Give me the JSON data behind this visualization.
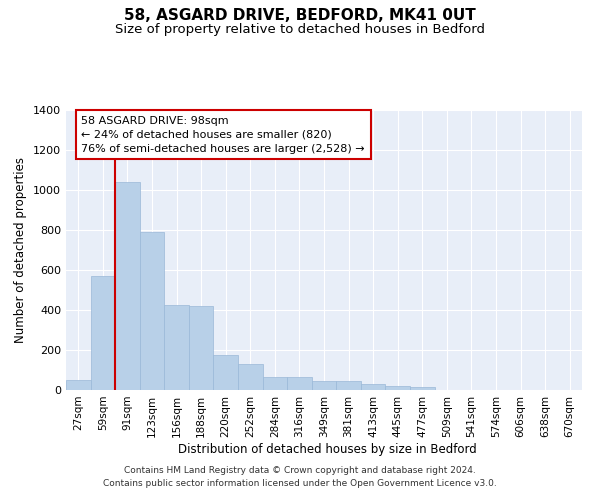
{
  "title": "58, ASGARD DRIVE, BEDFORD, MK41 0UT",
  "subtitle": "Size of property relative to detached houses in Bedford",
  "xlabel": "Distribution of detached houses by size in Bedford",
  "ylabel": "Number of detached properties",
  "categories": [
    "27sqm",
    "59sqm",
    "91sqm",
    "123sqm",
    "156sqm",
    "188sqm",
    "220sqm",
    "252sqm",
    "284sqm",
    "316sqm",
    "349sqm",
    "381sqm",
    "413sqm",
    "445sqm",
    "477sqm",
    "509sqm",
    "541sqm",
    "574sqm",
    "606sqm",
    "638sqm",
    "670sqm"
  ],
  "values": [
    50,
    570,
    1040,
    790,
    425,
    420,
    175,
    130,
    65,
    65,
    45,
    45,
    28,
    20,
    13,
    0,
    0,
    0,
    0,
    0,
    0
  ],
  "bar_color": "#b8d0e8",
  "bar_edge_color": "#9ab8d8",
  "vline_color": "#cc0000",
  "vline_x_idx": 2,
  "annotation_line1": "58 ASGARD DRIVE: 98sqm",
  "annotation_line2": "← 24% of detached houses are smaller (820)",
  "annotation_line3": "76% of semi-detached houses are larger (2,528) →",
  "annotation_box_color": "#ffffff",
  "annotation_box_edge": "#cc0000",
  "ylim": [
    0,
    1400
  ],
  "yticks": [
    0,
    200,
    400,
    600,
    800,
    1000,
    1200,
    1400
  ],
  "bg_color": "#e8eef8",
  "grid_color": "#ffffff",
  "footer": "Contains HM Land Registry data © Crown copyright and database right 2024.\nContains public sector information licensed under the Open Government Licence v3.0."
}
